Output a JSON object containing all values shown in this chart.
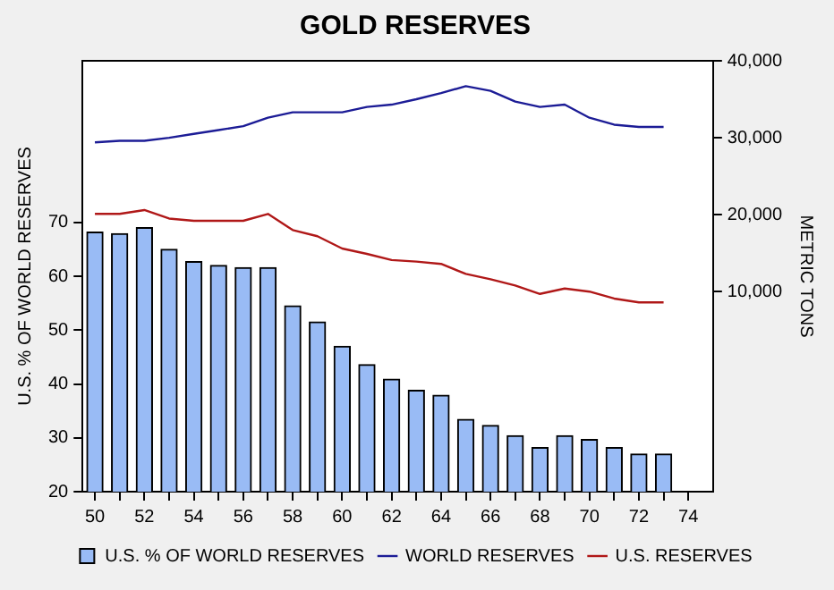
{
  "chart_data": {
    "type": "bar",
    "title": "GOLD RESERVES",
    "ylabel": "U.S. % OF WORLD RESERVES",
    "y2label": "METRIC TONS",
    "x": [
      50,
      51,
      52,
      53,
      54,
      55,
      56,
      57,
      58,
      59,
      60,
      61,
      62,
      63,
      64,
      65,
      66,
      67,
      68,
      69,
      70,
      71,
      72,
      73
    ],
    "xlim": [
      49.5,
      75
    ],
    "xticks": [
      50,
      {
        "value": 51,
        "label": null
      },
      52,
      {
        "value": 53,
        "label": null
      },
      54,
      {
        "value": 55,
        "label": null
      },
      56,
      {
        "value": 57,
        "label": null
      },
      58,
      {
        "value": 59,
        "label": null
      },
      60,
      {
        "value": 61,
        "label": null
      },
      62,
      {
        "value": 63,
        "label": null
      },
      64,
      {
        "value": 65,
        "label": null
      },
      66,
      {
        "value": 67,
        "label": null
      },
      68,
      {
        "value": 69,
        "label": null
      },
      70,
      {
        "value": 71,
        "label": null
      },
      72,
      {
        "value": 73,
        "label": null
      },
      74
    ],
    "ylim": [
      20,
      100
    ],
    "yticks": [
      20,
      30,
      40,
      50,
      60,
      70
    ],
    "y2lim": [
      -16000,
      40000
    ],
    "y2ticks": [
      {
        "value": 10000,
        "label": "10,000"
      },
      {
        "value": 20000,
        "label": "20,000"
      },
      {
        "value": 30000,
        "label": "30,000"
      },
      {
        "value": 40000,
        "label": "40,000"
      }
    ],
    "grid": false,
    "legend": "bottom",
    "marker": "none",
    "series": [
      {
        "name": "U.S. % OF WORLD RESERVES",
        "color": "#99bbf5",
        "values": [
          68.2,
          67.9,
          69,
          65,
          62.7,
          62,
          61.6,
          61.6,
          54.5,
          51.5,
          47,
          43.6,
          40.9,
          38.8,
          37.9,
          33.4,
          32.3,
          30.4,
          28.2,
          30.4,
          29.7,
          28.2,
          27,
          27
        ]
      },
      {
        "name": "WORLD RESERVES",
        "type": "line",
        "axis": "y2",
        "color": "#1c1c96",
        "values": [
          29400,
          29600,
          29600,
          30000,
          30500,
          31000,
          31500,
          32600,
          33300,
          33300,
          33300,
          34000,
          34300,
          35000,
          35800,
          36700,
          36100,
          34700,
          34000,
          34300,
          32600,
          31700,
          31400,
          31400
        ]
      },
      {
        "name": "U.S. RESERVES",
        "type": "line",
        "axis": "y2",
        "color": "#b01818",
        "values": [
          20100,
          20100,
          20600,
          19500,
          19200,
          19200,
          19200,
          20100,
          18000,
          17200,
          15600,
          14900,
          14100,
          13900,
          13600,
          12300,
          11600,
          10800,
          9700,
          10400,
          10000,
          9100,
          8600,
          8600
        ]
      }
    ]
  }
}
